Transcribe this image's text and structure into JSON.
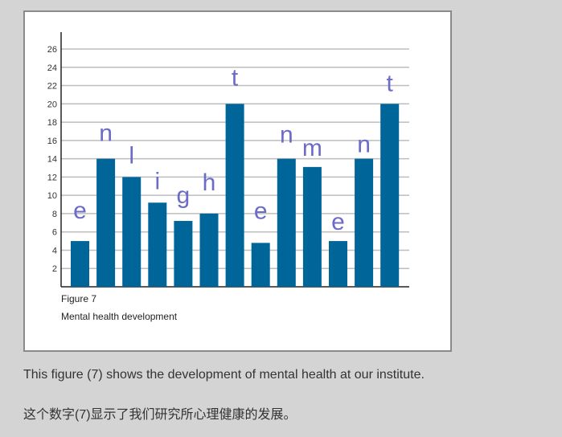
{
  "chart_data": {
    "type": "bar",
    "title": "Figure 7",
    "subtitle": "Mental health development",
    "categories": [
      "e",
      "n",
      "l",
      "i",
      "g",
      "h",
      "t",
      "e",
      "n",
      "m",
      "e",
      "n",
      "t"
    ],
    "values": [
      5,
      14,
      12,
      9.2,
      7.2,
      8,
      20,
      4.8,
      14,
      13.1,
      5,
      14,
      20
    ],
    "annotations": [
      "e",
      "n",
      "l",
      "i",
      "g",
      "h",
      "t",
      "e",
      "n",
      "m",
      "e",
      "n",
      "t"
    ],
    "yticks": [
      2,
      4,
      6,
      8,
      10,
      12,
      14,
      16,
      18,
      20,
      22,
      24,
      26
    ],
    "ylim": [
      0,
      27
    ],
    "xlabel": "",
    "ylabel": "",
    "grid": true,
    "bar_color": "#00669a",
    "annotation_color": "#6b6bc8"
  },
  "text": {
    "english": "This figure (7) shows the development of mental health at our institute.",
    "chinese": "这个数字(7)显示了我们研究所心理健康的发展。"
  }
}
